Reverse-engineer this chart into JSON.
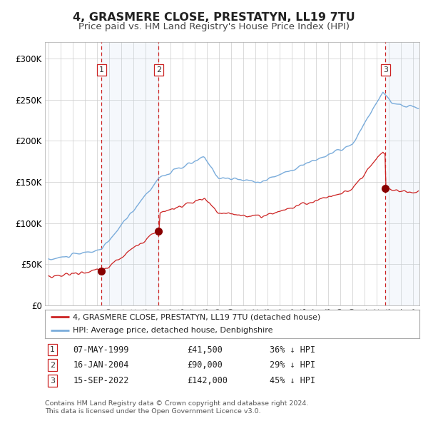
{
  "title": "4, GRASMERE CLOSE, PRESTATYN, LL19 7TU",
  "subtitle": "Price paid vs. HM Land Registry's House Price Index (HPI)",
  "title_fontsize": 11.5,
  "subtitle_fontsize": 9.5,
  "ylim": [
    0,
    320000
  ],
  "yticks": [
    0,
    50000,
    100000,
    150000,
    200000,
    250000,
    300000
  ],
  "ytick_labels": [
    "£0",
    "£50K",
    "£100K",
    "£150K",
    "£200K",
    "£250K",
    "£300K"
  ],
  "background_color": "#ffffff",
  "plot_bg_color": "#ffffff",
  "grid_color": "#cccccc",
  "hpi_color": "#7aacdb",
  "property_color": "#cc2222",
  "sale_marker_color": "#880000",
  "sale_dot_size": 7,
  "vline_color": "#cc2222",
  "shade_color": "#ddeeff",
  "sales": [
    {
      "date_num": 1999.35,
      "price": 41500,
      "label": "1",
      "date_str": "07-MAY-1999",
      "pct": "36% ↓ HPI"
    },
    {
      "date_num": 2004.04,
      "price": 90000,
      "label": "2",
      "date_str": "16-JAN-2004",
      "pct": "29% ↓ HPI"
    },
    {
      "date_num": 2022.71,
      "price": 142000,
      "label": "3",
      "date_str": "15-SEP-2022",
      "pct": "45% ↓ HPI"
    }
  ],
  "legend_property": "4, GRASMERE CLOSE, PRESTATYN, LL19 7TU (detached house)",
  "legend_hpi": "HPI: Average price, detached house, Denbighshire",
  "footer1": "Contains HM Land Registry data © Crown copyright and database right 2024.",
  "footer2": "This data is licensed under the Open Government Licence v3.0.",
  "xmin": 1994.7,
  "xmax": 2025.5
}
